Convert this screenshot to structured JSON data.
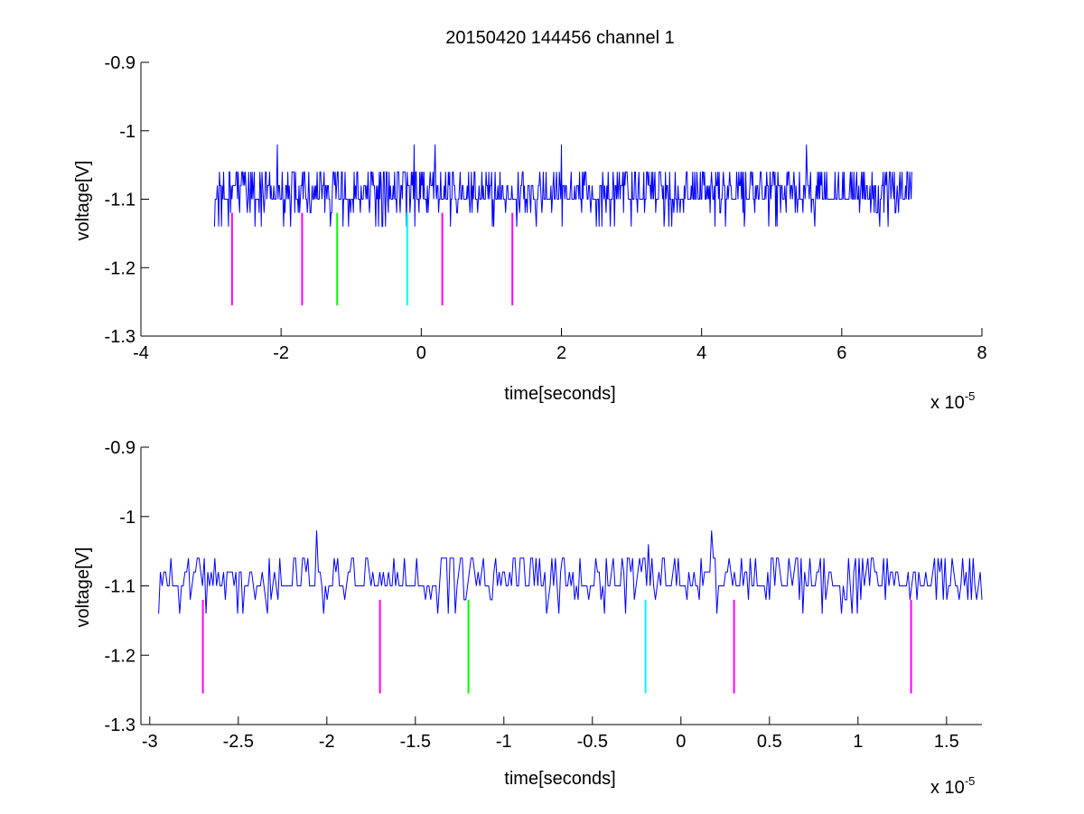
{
  "figure": {
    "title": "20150420 144456 channel 1"
  },
  "chart_data": [
    {
      "type": "line",
      "title": "20150420 144456 channel 1",
      "xlabel": "time[seconds]",
      "ylabel": "voltage[V]",
      "x_exponent_label": "x 10",
      "x_exponent": "-5",
      "xlim": [
        -4,
        8
      ],
      "ylim": [
        -1.3,
        -0.9
      ],
      "x_unit_scale": 1e-05,
      "xticks": [
        -4,
        -2,
        0,
        2,
        4,
        6,
        8
      ],
      "xtick_labels": [
        "-4",
        "-2",
        "0",
        "2",
        "4",
        "6",
        "8"
      ],
      "yticks": [
        -1.3,
        -1.2,
        -1.1,
        -1.0,
        -0.9
      ],
      "ytick_labels": [
        "-1.3",
        "-1.2",
        "-1.1",
        "-1",
        "-0.9"
      ],
      "grid": false,
      "series": [
        {
          "color": "#0000ff",
          "x_range": [
            -2.95,
            7.0
          ],
          "levels": [
            -1.14,
            -1.12,
            -1.1,
            -1.08,
            -1.06,
            -1.02
          ],
          "baseline": -1.1,
          "samples": 1000,
          "spikes": [
            {
              "x": -2.05,
              "y": -1.02
            },
            {
              "x": -0.1,
              "y": -1.02
            },
            {
              "x": 0.2,
              "y": -1.02
            },
            {
              "x": 2.0,
              "y": -1.02
            },
            {
              "x": 5.5,
              "y": -1.02
            }
          ]
        }
      ],
      "markers": [
        {
          "x": -2.7,
          "y_top": -1.12,
          "y_bottom": -1.255,
          "color": "#ff00ff"
        },
        {
          "x": -1.7,
          "y_top": -1.12,
          "y_bottom": -1.255,
          "color": "#ff00ff"
        },
        {
          "x": -1.2,
          "y_top": -1.12,
          "y_bottom": -1.255,
          "color": "#00ff00"
        },
        {
          "x": -0.2,
          "y_top": -1.12,
          "y_bottom": -1.255,
          "color": "#00ffff"
        },
        {
          "x": 0.3,
          "y_top": -1.12,
          "y_bottom": -1.255,
          "color": "#ff00ff"
        },
        {
          "x": 1.3,
          "y_top": -1.12,
          "y_bottom": -1.255,
          "color": "#ff00ff"
        }
      ]
    },
    {
      "type": "line",
      "title": "",
      "xlabel": "time[seconds]",
      "ylabel": "voltage[V]",
      "x_exponent_label": "x 10",
      "x_exponent": "-5",
      "xlim": [
        -3.05,
        1.7
      ],
      "ylim": [
        -1.3,
        -0.9
      ],
      "x_unit_scale": 1e-05,
      "xticks": [
        -3,
        -2.5,
        -2,
        -1.5,
        -1,
        -0.5,
        0,
        0.5,
        1,
        1.5
      ],
      "xtick_labels": [
        "-3",
        "-2.5",
        "-2",
        "-1.5",
        "-1",
        "-0.5",
        "0",
        "0.5",
        "1",
        "1.5"
      ],
      "yticks": [
        -1.3,
        -1.2,
        -1.1,
        -1.0,
        -0.9
      ],
      "ytick_labels": [
        "-1.3",
        "-1.2",
        "-1.1",
        "-1",
        "-0.9"
      ],
      "grid": false,
      "series": [
        {
          "color": "#0000ff",
          "x_range": [
            -2.95,
            1.7
          ],
          "levels": [
            -1.14,
            -1.12,
            -1.1,
            -1.08,
            -1.06,
            -1.02
          ],
          "baseline": -1.1,
          "samples": 470,
          "spikes": [
            {
              "x": -2.06,
              "y": -1.02
            },
            {
              "x": -0.18,
              "y": -1.04
            },
            {
              "x": 0.17,
              "y": -1.02
            }
          ]
        }
      ],
      "markers": [
        {
          "x": -2.7,
          "y_top": -1.12,
          "y_bottom": -1.255,
          "color": "#ff00ff"
        },
        {
          "x": -1.7,
          "y_top": -1.12,
          "y_bottom": -1.255,
          "color": "#ff00ff"
        },
        {
          "x": -1.2,
          "y_top": -1.12,
          "y_bottom": -1.255,
          "color": "#00ff00"
        },
        {
          "x": -0.2,
          "y_top": -1.12,
          "y_bottom": -1.255,
          "color": "#00ffff"
        },
        {
          "x": 0.3,
          "y_top": -1.12,
          "y_bottom": -1.255,
          "color": "#ff00ff"
        },
        {
          "x": 1.3,
          "y_top": -1.12,
          "y_bottom": -1.255,
          "color": "#ff00ff"
        }
      ]
    }
  ]
}
